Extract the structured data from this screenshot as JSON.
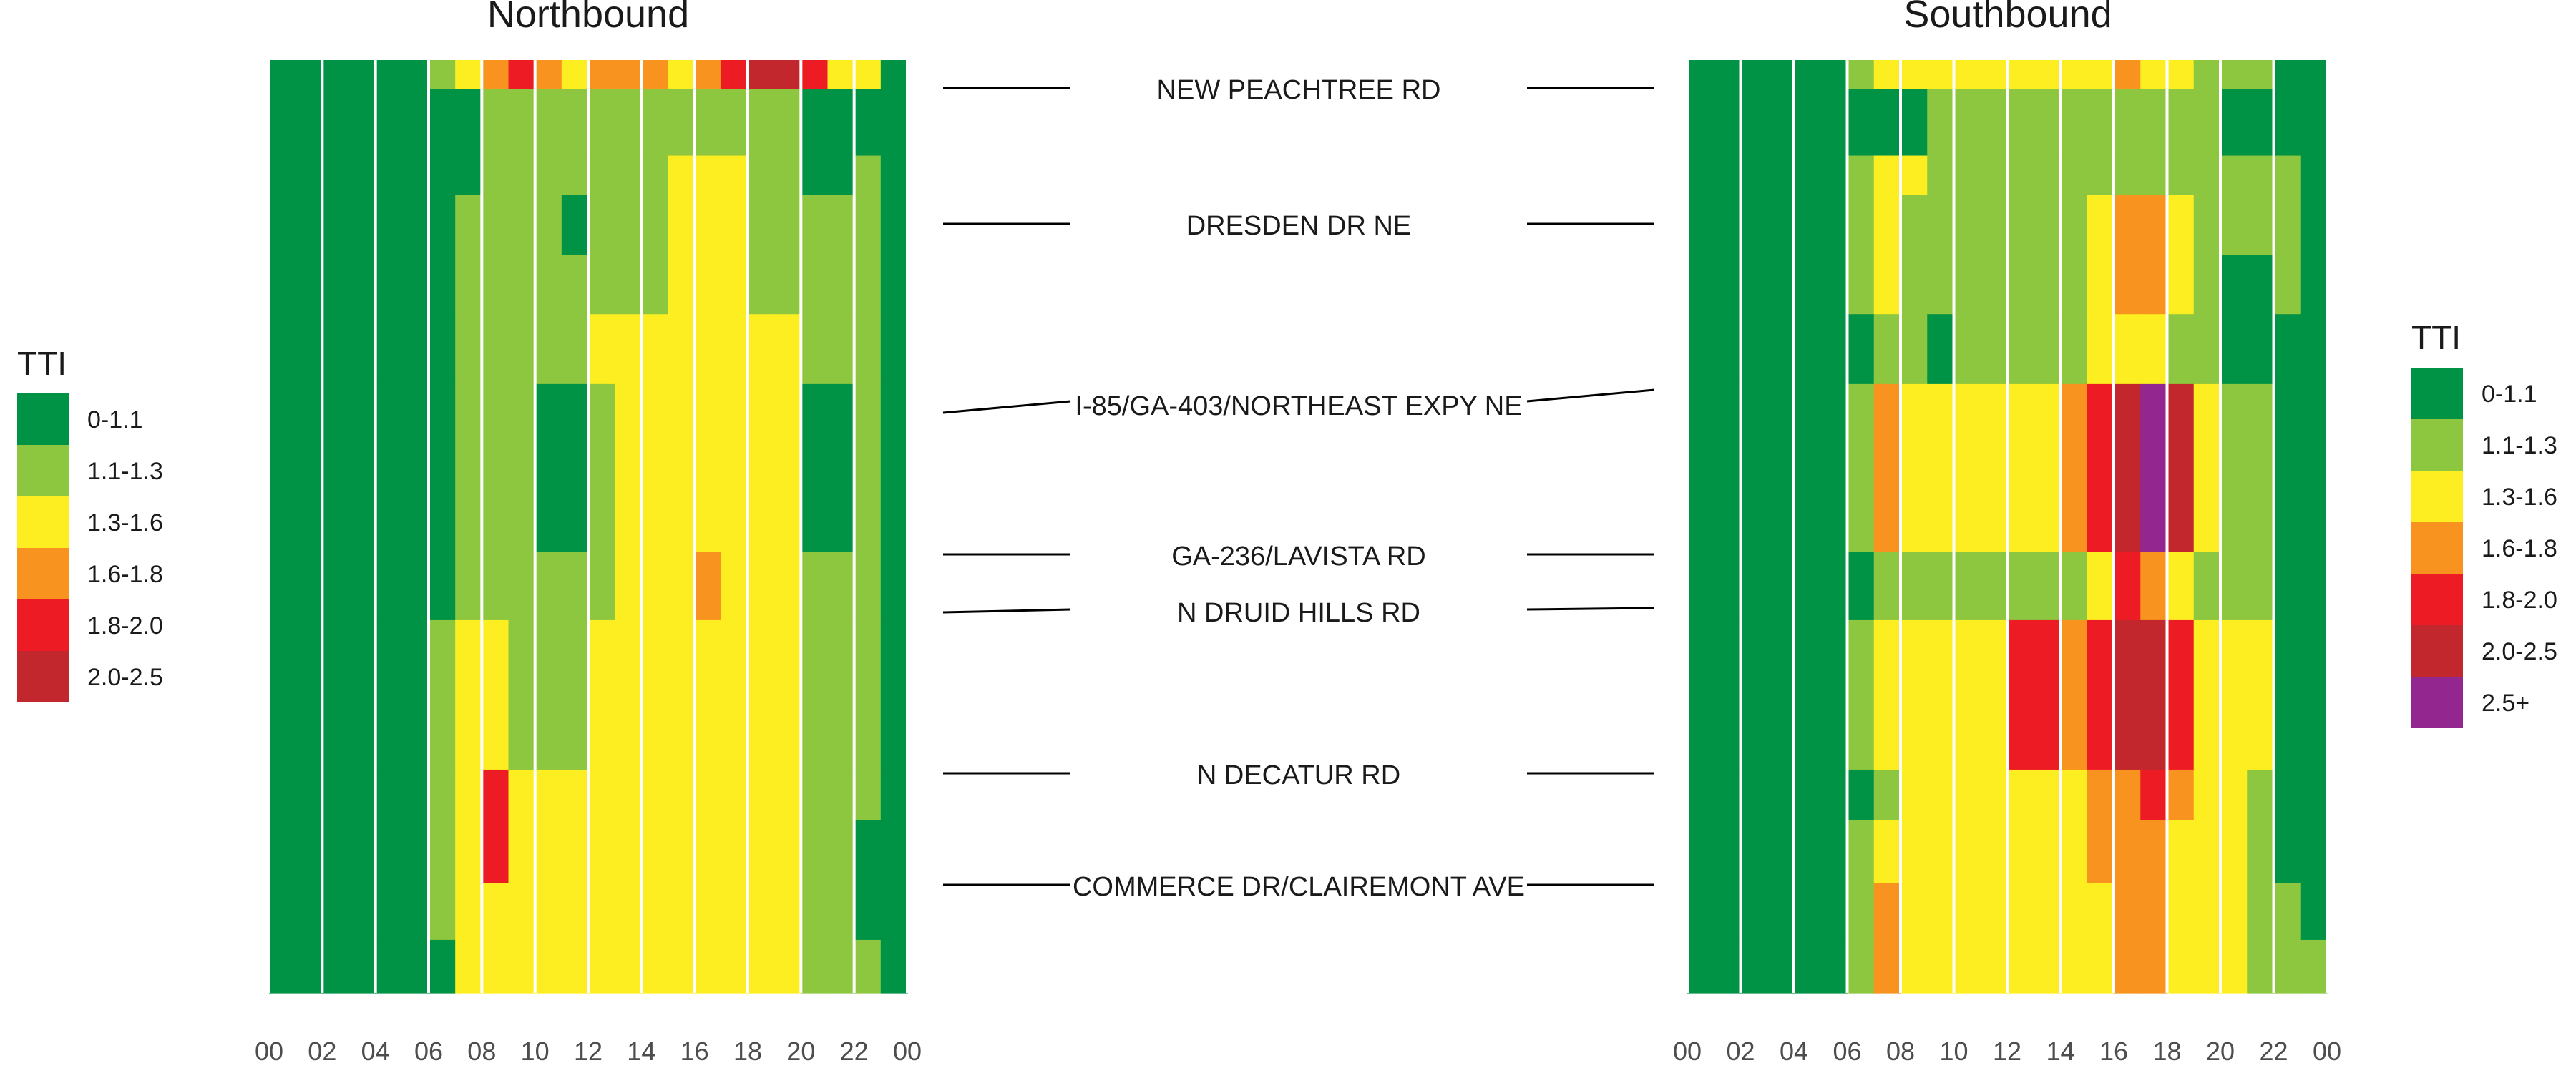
{
  "chart_data": [
    {
      "type": "heatmap",
      "title": "Northbound",
      "xlabel": "",
      "ylabel": "",
      "x_ticks": [
        "00",
        "02",
        "04",
        "06",
        "08",
        "10",
        "12",
        "14",
        "16",
        "18",
        "20",
        "22",
        "00"
      ],
      "xlim": [
        0,
        24
      ],
      "y_labels": [
        "NEW PEACHTREE RD",
        "DRESDEN DR NE",
        "I-85/GA-403/NORTHEAST EXPY NE",
        "GA-236/LAVISTA RD",
        "N DRUID HILLS RD",
        "N DECATUR RD",
        "COMMERCE DR/CLAIREMONT AVE"
      ],
      "value_bins": [
        "0-1.1",
        "1.1-1.3",
        "1.3-1.6",
        "1.6-1.8",
        "1.8-2.0",
        "2.0-2.5"
      ],
      "legend": {
        "title": "TTI",
        "position": "left",
        "entries": [
          "0-1.1",
          "1.1-1.3",
          "1.3-1.6",
          "1.6-1.8",
          "1.8-2.0",
          "2.0-2.5"
        ]
      },
      "grid": true,
      "segment_distance_fraction": [
        0,
        0.0314,
        0.1024,
        0.1445,
        0.2087,
        0.2724,
        0.3473,
        0.5276,
        0.6004,
        0.7607,
        0.8146,
        0.882,
        0.9432,
        1.0
      ],
      "bins_by_segment_and_hour": [
        [
          0,
          0,
          0,
          0,
          0,
          0,
          1,
          2,
          3,
          4,
          3,
          2,
          3,
          3,
          3,
          2,
          3,
          4,
          5,
          5,
          4,
          2,
          2,
          0
        ],
        [
          0,
          0,
          0,
          0,
          0,
          0,
          0,
          0,
          1,
          1,
          1,
          1,
          1,
          1,
          1,
          1,
          1,
          1,
          1,
          1,
          0,
          0,
          0,
          0
        ],
        [
          0,
          0,
          0,
          0,
          0,
          0,
          0,
          0,
          1,
          1,
          1,
          1,
          1,
          1,
          1,
          2,
          2,
          2,
          1,
          1,
          0,
          0,
          1,
          0
        ],
        [
          0,
          0,
          0,
          0,
          0,
          0,
          0,
          1,
          1,
          1,
          1,
          0,
          1,
          1,
          1,
          2,
          2,
          2,
          1,
          1,
          1,
          1,
          1,
          0
        ],
        [
          0,
          0,
          0,
          0,
          0,
          0,
          0,
          1,
          1,
          1,
          1,
          1,
          1,
          1,
          1,
          2,
          2,
          2,
          1,
          1,
          1,
          1,
          1,
          0
        ],
        [
          0,
          0,
          0,
          0,
          0,
          0,
          0,
          1,
          1,
          1,
          1,
          1,
          2,
          2,
          2,
          2,
          2,
          2,
          2,
          2,
          1,
          1,
          1,
          0
        ],
        [
          0,
          0,
          0,
          0,
          0,
          0,
          0,
          1,
          1,
          1,
          0,
          0,
          1,
          2,
          2,
          2,
          2,
          2,
          2,
          2,
          0,
          0,
          1,
          0
        ],
        [
          0,
          0,
          0,
          0,
          0,
          0,
          0,
          1,
          1,
          1,
          1,
          1,
          1,
          2,
          2,
          2,
          3,
          2,
          2,
          2,
          1,
          1,
          1,
          0
        ],
        [
          0,
          0,
          0,
          0,
          0,
          0,
          1,
          2,
          2,
          1,
          1,
          1,
          2,
          2,
          2,
          2,
          2,
          2,
          2,
          2,
          1,
          1,
          1,
          0
        ],
        [
          0,
          0,
          0,
          0,
          0,
          0,
          1,
          2,
          4,
          2,
          2,
          2,
          2,
          2,
          2,
          2,
          2,
          2,
          2,
          2,
          1,
          1,
          1,
          0
        ],
        [
          0,
          0,
          0,
          0,
          0,
          0,
          1,
          2,
          4,
          2,
          2,
          2,
          2,
          2,
          2,
          2,
          2,
          2,
          2,
          2,
          1,
          1,
          0,
          0
        ],
        [
          0,
          0,
          0,
          0,
          0,
          0,
          1,
          2,
          2,
          2,
          2,
          2,
          2,
          2,
          2,
          2,
          2,
          2,
          2,
          2,
          1,
          1,
          0,
          0
        ],
        [
          0,
          0,
          0,
          0,
          0,
          0,
          0,
          2,
          2,
          2,
          2,
          2,
          2,
          2,
          2,
          2,
          2,
          2,
          2,
          2,
          1,
          1,
          1,
          0
        ]
      ]
    },
    {
      "type": "heatmap",
      "title": "Southbound",
      "xlabel": "",
      "ylabel": "",
      "x_ticks": [
        "00",
        "02",
        "04",
        "06",
        "08",
        "10",
        "12",
        "14",
        "16",
        "18",
        "20",
        "22",
        "00"
      ],
      "xlim": [
        0,
        24
      ],
      "y_labels": [
        "NEW PEACHTREE RD",
        "DRESDEN DR NE",
        "I-85/GA-403/NORTHEAST EXPY NE",
        "GA-236/LAVISTA RD",
        "N DRUID HILLS RD",
        "N DECATUR RD",
        "COMMERCE DR/CLAIREMONT AVE"
      ],
      "value_bins": [
        "0-1.1",
        "1.1-1.3",
        "1.3-1.6",
        "1.6-1.8",
        "1.8-2.0",
        "2.0-2.5",
        "2.5+"
      ],
      "legend": {
        "title": "TTI",
        "position": "right",
        "entries": [
          "0-1.1",
          "1.1-1.3",
          "1.3-1.6",
          "1.6-1.8",
          "1.8-2.0",
          "2.0-2.5",
          "2.5+"
        ]
      },
      "grid": true,
      "segment_distance_fraction": [
        0,
        0.0314,
        0.1024,
        0.1445,
        0.2087,
        0.2724,
        0.3473,
        0.5276,
        0.6004,
        0.7607,
        0.8146,
        0.882,
        0.9432,
        1.0
      ],
      "bins_by_segment_and_hour": [
        [
          0,
          0,
          0,
          0,
          0,
          0,
          1,
          2,
          2,
          2,
          2,
          2,
          2,
          2,
          2,
          2,
          3,
          2,
          2,
          1,
          1,
          1,
          0,
          0
        ],
        [
          0,
          0,
          0,
          0,
          0,
          0,
          0,
          0,
          0,
          1,
          1,
          1,
          1,
          1,
          1,
          1,
          1,
          1,
          1,
          1,
          0,
          0,
          0,
          0
        ],
        [
          0,
          0,
          0,
          0,
          0,
          0,
          1,
          2,
          2,
          1,
          1,
          1,
          1,
          1,
          1,
          1,
          1,
          1,
          1,
          1,
          1,
          1,
          1,
          0
        ],
        [
          0,
          0,
          0,
          0,
          0,
          0,
          1,
          2,
          1,
          1,
          1,
          1,
          1,
          1,
          1,
          2,
          3,
          3,
          2,
          1,
          1,
          1,
          1,
          0
        ],
        [
          0,
          0,
          0,
          0,
          0,
          0,
          1,
          2,
          1,
          1,
          1,
          1,
          1,
          1,
          1,
          2,
          3,
          3,
          2,
          1,
          0,
          0,
          1,
          0
        ],
        [
          0,
          0,
          0,
          0,
          0,
          0,
          0,
          1,
          1,
          0,
          1,
          1,
          1,
          1,
          1,
          2,
          2,
          2,
          1,
          1,
          0,
          0,
          0,
          0
        ],
        [
          0,
          0,
          0,
          0,
          0,
          0,
          1,
          3,
          2,
          2,
          2,
          2,
          2,
          2,
          3,
          4,
          5,
          6,
          5,
          2,
          1,
          1,
          0,
          0
        ],
        [
          0,
          0,
          0,
          0,
          0,
          0,
          0,
          1,
          1,
          1,
          1,
          1,
          1,
          1,
          1,
          2,
          4,
          3,
          2,
          1,
          1,
          1,
          0,
          0
        ],
        [
          0,
          0,
          0,
          0,
          0,
          0,
          1,
          2,
          2,
          2,
          2,
          2,
          4,
          4,
          3,
          4,
          5,
          5,
          4,
          2,
          2,
          2,
          0,
          0
        ],
        [
          0,
          0,
          0,
          0,
          0,
          0,
          0,
          1,
          2,
          2,
          2,
          2,
          2,
          2,
          2,
          3,
          3,
          4,
          3,
          2,
          2,
          1,
          0,
          0
        ],
        [
          0,
          0,
          0,
          0,
          0,
          0,
          1,
          2,
          2,
          2,
          2,
          2,
          2,
          2,
          2,
          3,
          3,
          3,
          2,
          2,
          2,
          1,
          0,
          0
        ],
        [
          0,
          0,
          0,
          0,
          0,
          0,
          1,
          3,
          2,
          2,
          2,
          2,
          2,
          2,
          2,
          2,
          3,
          3,
          2,
          2,
          2,
          1,
          1,
          0
        ],
        [
          0,
          0,
          0,
          0,
          0,
          0,
          1,
          3,
          2,
          2,
          2,
          2,
          2,
          2,
          2,
          2,
          3,
          3,
          2,
          2,
          2,
          1,
          1,
          1
        ]
      ]
    }
  ],
  "colors": {
    "bins": [
      "#009245",
      "#8dc63f",
      "#fcee21",
      "#f7931e",
      "#ed1c24",
      "#c1272d",
      "#93278f"
    ],
    "text": "#1a1a1a",
    "tick": "#4d4d4d",
    "grid_line": "#ffffff",
    "connector": "#000000"
  },
  "road_labels": [
    "NEW PEACHTREE RD",
    "DRESDEN DR NE",
    "I-85/GA-403/NORTHEAST EXPY NE",
    "GA-236/LAVISTA RD",
    "N DRUID HILLS RD",
    "N DECATUR RD",
    "COMMERCE DR/CLAIREMONT AVE"
  ]
}
